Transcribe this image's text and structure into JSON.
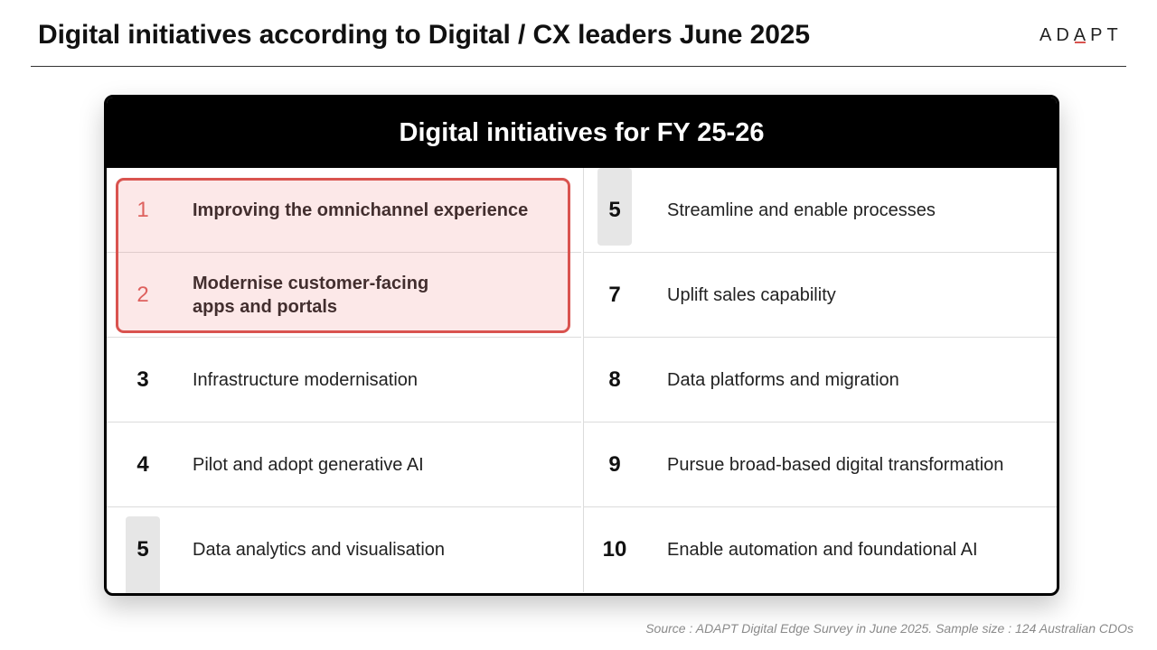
{
  "header": {
    "title": "Digital initiatives according to Digital / CX leaders June 2025",
    "logo_parts": [
      "AD",
      "A",
      "PT"
    ]
  },
  "card": {
    "title": "Digital initiatives for FY 25-26",
    "left": [
      {
        "rank": "1",
        "label": "Improving the omnichannel experience"
      },
      {
        "rank": "2",
        "label": "Modernise customer-facing\napps and portals"
      },
      {
        "rank": "3",
        "label": "Infrastructure modernisation"
      },
      {
        "rank": "4",
        "label": "Pilot and adopt generative AI"
      },
      {
        "rank": "5",
        "label": "Data analytics and visualisation"
      }
    ],
    "right": [
      {
        "rank": "5",
        "label": "Streamline and enable processes"
      },
      {
        "rank": "7",
        "label": "Uplift sales capability"
      },
      {
        "rank": "8",
        "label": "Data platforms and migration"
      },
      {
        "rank": "9",
        "label": "Pursue broad-based digital transformation"
      },
      {
        "rank": "10",
        "label": "Enable automation and foundational AI"
      }
    ]
  },
  "colors": {
    "accent": "#d9534f",
    "header_bg": "#000000",
    "tie_tab": "#e6e6e6"
  },
  "footer": {
    "source": "Source : ADAPT Digital Edge Survey in June 2025. Sample size : 124 Australian CDOs"
  }
}
